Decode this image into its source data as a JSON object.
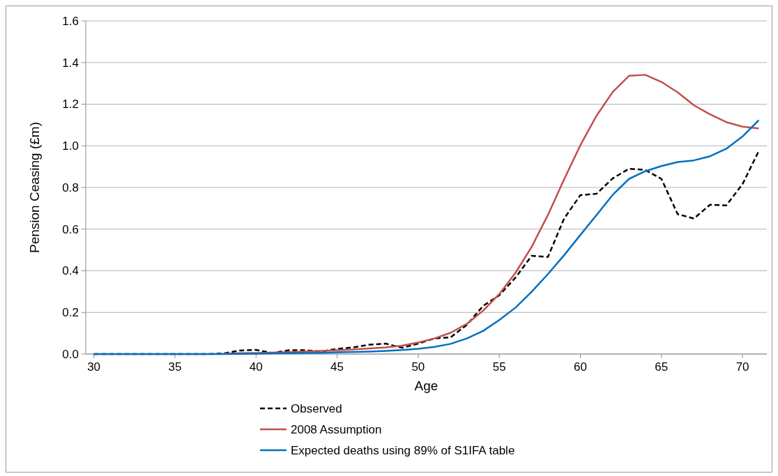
{
  "chart_data": {
    "type": "line",
    "xlabel": "Age",
    "ylabel": "Pension Ceasing (£m)",
    "x": [
      30,
      31,
      32,
      33,
      34,
      35,
      36,
      37,
      38,
      39,
      40,
      41,
      42,
      43,
      44,
      45,
      46,
      47,
      48,
      49,
      50,
      51,
      52,
      53,
      54,
      55,
      56,
      57,
      58,
      59,
      60,
      61,
      62,
      63,
      64,
      65,
      66,
      67,
      68,
      69,
      70,
      71
    ],
    "xlim": [
      29.5,
      71.5
    ],
    "xticks": [
      30,
      35,
      40,
      45,
      50,
      55,
      60,
      65,
      70
    ],
    "ylim": [
      0,
      1.6
    ],
    "yticks": [
      {
        "value": 0,
        "label": "0.0"
      },
      {
        "value": 0.2,
        "label": "0.2"
      },
      {
        "value": 0.4,
        "label": "0.4"
      },
      {
        "value": 0.6,
        "label": "0.6"
      },
      {
        "value": 0.8,
        "label": "0.8"
      },
      {
        "value": 1,
        "label": "1.0"
      },
      {
        "value": 1.2,
        "label": "1.2"
      },
      {
        "value": 1.4,
        "label": "1.4"
      },
      {
        "value": 1.6,
        "label": "1.6"
      }
    ],
    "grid": "y",
    "legend": "bottom",
    "marker": "none",
    "series": [
      {
        "name": "Observed",
        "color": "#000000",
        "line_style": "dashed",
        "values": [
          0,
          0,
          0,
          0,
          0,
          0,
          0,
          0,
          0.003,
          0.017,
          0.02,
          0.005,
          0.018,
          0.018,
          0.012,
          0.025,
          0.032,
          0.045,
          0.05,
          0.03,
          0.05,
          0.075,
          0.08,
          0.14,
          0.231,
          0.282,
          0.367,
          0.472,
          0.466,
          0.651,
          0.763,
          0.77,
          0.844,
          0.89,
          0.884,
          0.841,
          0.672,
          0.651,
          0.717,
          0.714,
          0.816,
          0.975
        ]
      },
      {
        "name": "2008 Assumption",
        "color": "#c0504d",
        "line_style": "solid",
        "values": [
          null,
          null,
          null,
          null,
          null,
          null,
          null,
          null,
          0.002,
          0.004,
          0.005,
          0.007,
          0.009,
          0.012,
          0.015,
          0.018,
          0.022,
          0.027,
          0.032,
          0.04,
          0.055,
          0.075,
          0.102,
          0.145,
          0.208,
          0.288,
          0.39,
          0.515,
          0.668,
          0.839,
          1.003,
          1.145,
          1.259,
          1.336,
          1.341,
          1.307,
          1.257,
          1.195,
          1.151,
          1.114,
          1.092,
          1.084
        ]
      },
      {
        "name": "Expected deaths using 89% of S1IFA table",
        "color": "#0070c0",
        "line_style": "solid",
        "values": [
          0,
          0,
          0,
          0,
          0,
          0,
          0,
          0,
          0,
          0.001,
          0.002,
          0.003,
          0.004,
          0.005,
          0.006,
          0.008,
          0.01,
          0.012,
          0.015,
          0.019,
          0.025,
          0.034,
          0.049,
          0.075,
          0.111,
          0.163,
          0.223,
          0.299,
          0.384,
          0.475,
          0.572,
          0.668,
          0.765,
          0.841,
          0.878,
          0.903,
          0.922,
          0.93,
          0.95,
          0.986,
          1.045,
          1.123
        ]
      }
    ]
  }
}
